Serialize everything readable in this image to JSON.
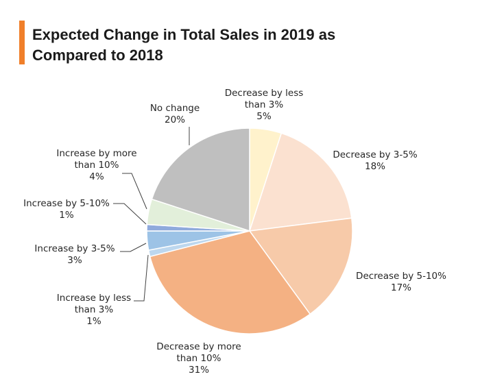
{
  "title": {
    "line1": "Expected Change in Total Sales in 2019 as",
    "line2": "Compared to 2018"
  },
  "colors": {
    "accent_bar": "#f07f2a"
  },
  "chart_data": {
    "type": "pie",
    "title": "Expected Change in Total Sales in 2019 as Compared to 2018",
    "unit": "%",
    "start": "12 o'clock, clockwise",
    "slices": [
      {
        "label": "Decrease by less than 3%",
        "label_lines": [
          "Decrease by less",
          "than 3%"
        ],
        "value": 5,
        "value_label": "5%",
        "color": "#fff2cc"
      },
      {
        "label": "Decrease by 3-5%",
        "label_lines": [
          "Decrease by 3-5%"
        ],
        "value": 18,
        "value_label": "18%",
        "color": "#fbe1d0"
      },
      {
        "label": "Decrease by 5-10%",
        "label_lines": [
          "Decrease by 5-10%"
        ],
        "value": 17,
        "value_label": "17%",
        "color": "#f7caa9"
      },
      {
        "label": "Decrease by more than 10%",
        "label_lines": [
          "Decrease by more",
          "than 10%"
        ],
        "value": 31,
        "value_label": "31%",
        "color": "#f4b183"
      },
      {
        "label": "Increase by less than 3%",
        "label_lines": [
          "Increase by less",
          "than 3%"
        ],
        "value": 1,
        "value_label": "1%",
        "color": "#bdd7ee"
      },
      {
        "label": "Increase by 3-5%",
        "label_lines": [
          "Increase by 3-5%"
        ],
        "value": 3,
        "value_label": "3%",
        "color": "#9dc3e6"
      },
      {
        "label": "Increase by 5-10%",
        "label_lines": [
          "Increase by 5-10%"
        ],
        "value": 1,
        "value_label": "1%",
        "color": "#8faadc"
      },
      {
        "label": "Increase by more than 10%",
        "label_lines": [
          "Increase by more",
          "than 10%"
        ],
        "value": 4,
        "value_label": "4%",
        "color": "#e2efda"
      },
      {
        "label": "No change",
        "label_lines": [
          "No change"
        ],
        "value": 20,
        "value_label": "20%",
        "color": "#bfbfbf"
      }
    ]
  }
}
